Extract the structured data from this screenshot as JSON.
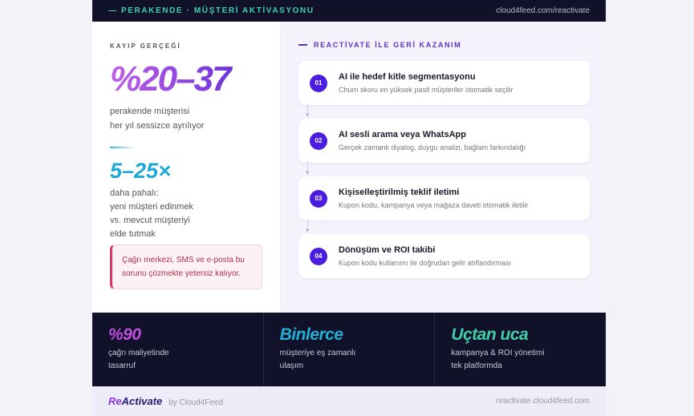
{
  "header": {
    "title": "— PERAKENDE · MÜŞTERİ AKTİVASYONU",
    "url": "cloud4feed.com/reactivate"
  },
  "left": {
    "label": "KAYIP GERÇEĞİ",
    "big": "%20–37",
    "sub": [
      "perakende müşterisi",
      "her yıl sessizce ayrılıyor"
    ],
    "big2": "5–25×",
    "sub2": [
      "daha pahalı:",
      "yeni müşteri edinmek",
      "vs. mevcut müşteriyi",
      "elde tutmak"
    ],
    "warning": "Çağrı merkezi, SMS ve e-posta bu sorunu çözmekte yetersiz kalıyor."
  },
  "right": {
    "heading": "REACTİVATE İLE GERİ KAZANIM",
    "steps": [
      {
        "num": "01",
        "title": "AI ile hedef kitle segmentasyonu",
        "desc": "Churn skoru en yüksek pasif müşteriler otomatik seçilir"
      },
      {
        "num": "02",
        "title": "AI sesli arama veya WhatsApp",
        "desc": "Gerçek zamanlı diyalog, duygu analizi, bağlam farkındalığı"
      },
      {
        "num": "03",
        "title": "Kişiselleştirilmiş teklif iletimi",
        "desc": "Kupon kodu, kampanya veya mağaza daveti otomatik iletilir"
      },
      {
        "num": "04",
        "title": "Dönüşüm ve ROI takibi",
        "desc": "Kupon kodu kullanımı ile doğrudan gelir atıflandırması"
      }
    ]
  },
  "stats": [
    {
      "value": "%90",
      "lines": [
        "çağrı maliyetinde",
        "tasarruf"
      ],
      "color": "#c050e0"
    },
    {
      "value": "Binlerce",
      "lines": [
        "müşteriye eş zamanlı",
        "ulaşım"
      ],
      "color": "#22b0d8"
    },
    {
      "value": "Uçtan uca",
      "lines": [
        "kampanya & ROI yönetimi",
        "tek platformda"
      ],
      "color": "#40d0a8"
    }
  ],
  "footer": {
    "brand_re": "Re",
    "brand_rest": "Activate",
    "by": "by Cloud4Feed",
    "url": "reactivate.cloud4feed.com"
  }
}
